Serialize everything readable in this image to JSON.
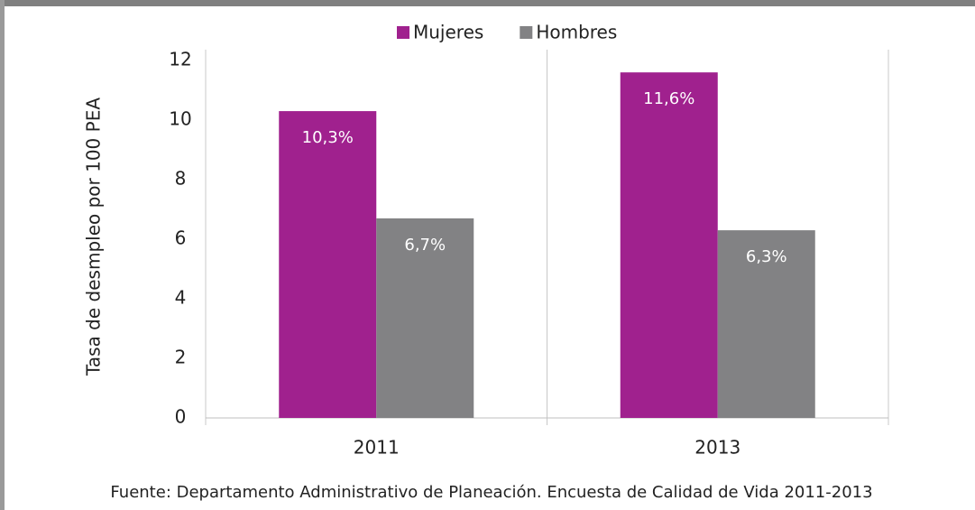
{
  "chart_data": {
    "type": "bar",
    "y_label": "Tasa de desmpleo por 100 PEA",
    "categories": [
      "2011",
      "2013"
    ],
    "series": [
      {
        "name": "Mujeres",
        "color": "#a0218e",
        "values": [
          10.3,
          11.6
        ],
        "value_labels": [
          "10,3%",
          "11,6%"
        ]
      },
      {
        "name": "Hombres",
        "color": "#828284",
        "values": [
          6.7,
          6.3
        ],
        "value_labels": [
          "6,7%",
          "6,3%"
        ]
      }
    ],
    "ylim": [
      0,
      12
    ],
    "yticks": [
      0,
      2,
      4,
      6,
      8,
      10,
      12
    ],
    "legend": "top",
    "source": "Fuente: Departamento Administrativo de Planeación. Encuesta de Calidad de Vida 2011-2013"
  }
}
